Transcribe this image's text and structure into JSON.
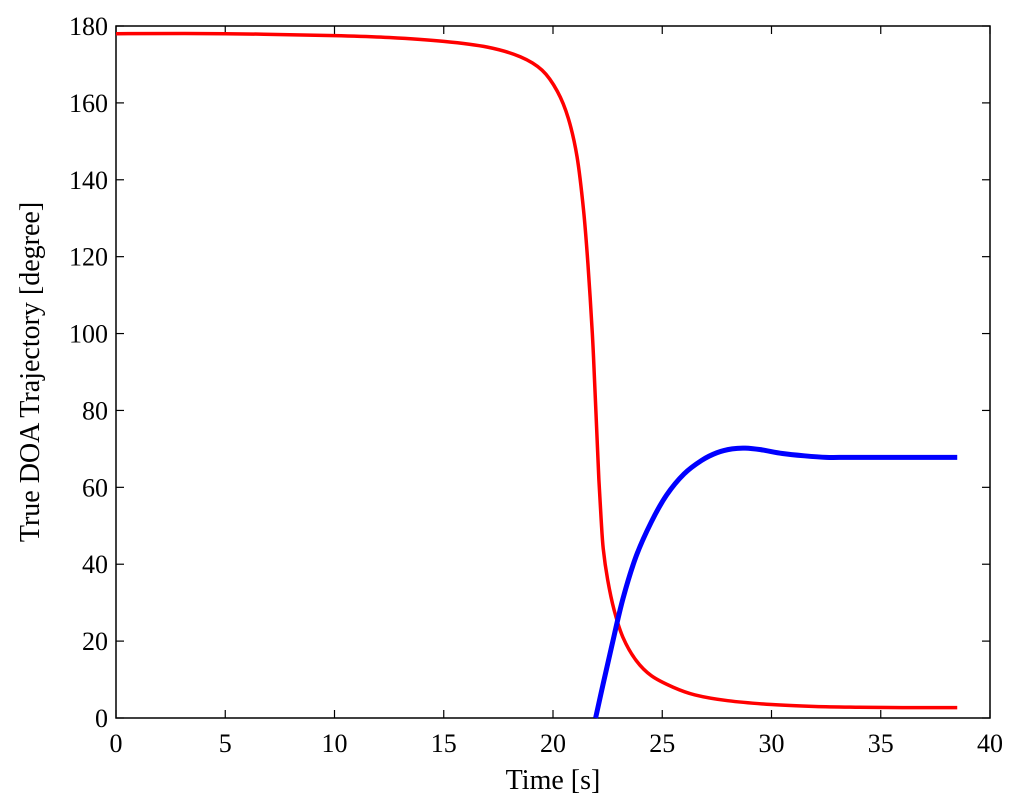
{
  "chart_data": {
    "type": "line",
    "xlabel": "Time [s]",
    "ylabel": "True DOA Trajectory [degree]",
    "xlim": [
      0,
      40
    ],
    "ylim": [
      0,
      180
    ],
    "xticks": [
      "0",
      "5",
      "10",
      "15",
      "20",
      "25",
      "30",
      "35",
      "40"
    ],
    "yticks": [
      "0",
      "20",
      "40",
      "60",
      "80",
      "100",
      "120",
      "140",
      "160",
      "180"
    ],
    "grid": false,
    "legend": "none",
    "series": [
      {
        "color": "#ff0000",
        "x": [
          0,
          5,
          10,
          12.5,
          15,
          17,
          18.5,
          19.5,
          20.2,
          20.7,
          21.1,
          21.4,
          21.6,
          21.8,
          21.9,
          22.0,
          22.1,
          22.2,
          22.3,
          22.5,
          22.8,
          23.2,
          23.8,
          24.5,
          25.5,
          26.5,
          28,
          30,
          32,
          34,
          36,
          38.5
        ],
        "y": [
          178,
          178,
          177.5,
          177,
          176,
          174.5,
          172,
          168.5,
          163,
          156,
          146,
          132,
          118,
          100,
          88,
          75,
          62,
          52,
          44,
          36,
          28,
          21,
          15,
          11,
          8,
          6,
          4.5,
          3.5,
          3,
          2.8,
          2.7,
          2.7
        ]
      },
      {
        "color": "#0000ff",
        "x": [
          21.95,
          22.3,
          22.7,
          23.2,
          23.8,
          24.5,
          25.2,
          26,
          26.8,
          27.5,
          28.2,
          28.8,
          29.5,
          30.5,
          31.5,
          32.5,
          33.5,
          35,
          37,
          38.5
        ],
        "y": [
          0,
          9,
          19,
          31,
          42,
          51,
          58,
          63.5,
          67,
          69,
          70,
          70.2,
          69.8,
          68.8,
          68.2,
          67.8,
          67.8,
          67.8,
          67.8,
          67.8
        ]
      }
    ]
  }
}
